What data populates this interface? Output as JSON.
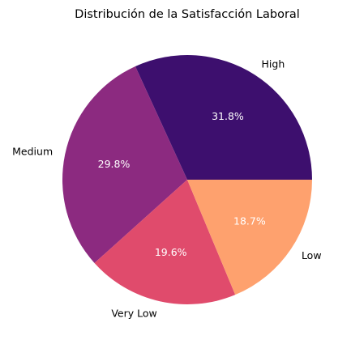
{
  "chart_data": {
    "type": "pie",
    "title": "Distribución de la Satisfacción Laboral",
    "slices": [
      {
        "label": "High",
        "value": 31.8,
        "pct_label": "31.8%",
        "color": "#3d0f6e"
      },
      {
        "label": "Medium",
        "value": 29.8,
        "pct_label": "29.8%",
        "color": "#8c2a80"
      },
      {
        "label": "Very Low",
        "value": 19.6,
        "pct_label": "19.6%",
        "color": "#e04b6c"
      },
      {
        "label": "Low",
        "value": 18.7,
        "pct_label": "18.7%",
        "color": "#fea16e"
      }
    ],
    "start_angle_deg": 0,
    "direction": "counterclockwise"
  }
}
